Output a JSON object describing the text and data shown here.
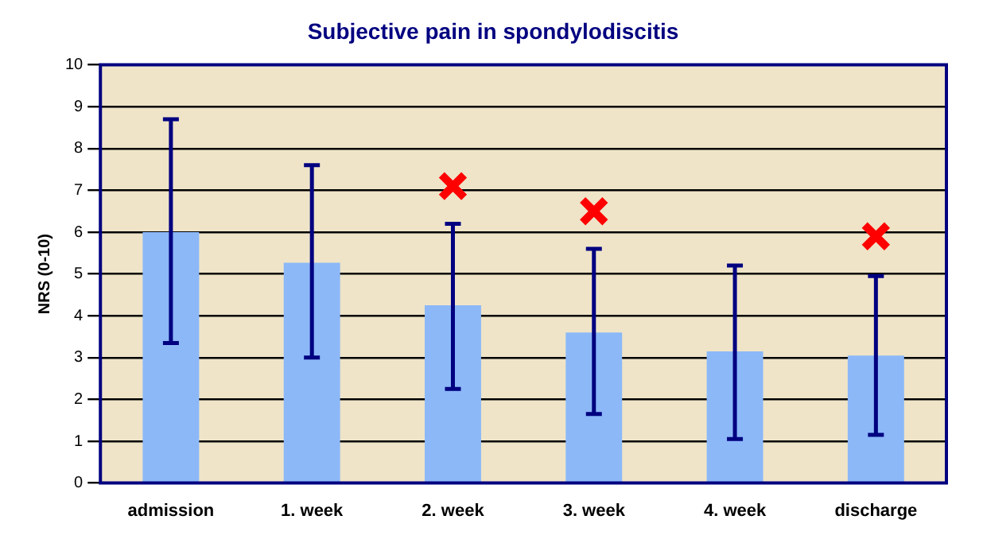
{
  "chart_data": {
    "type": "bar",
    "title": "Subjective pain in spondylodiscitis",
    "ylabel": "NRS (0-10)",
    "categories": [
      "admission",
      "1. week",
      "2. week",
      "3. week",
      "4. week",
      "discharge"
    ],
    "series": [
      {
        "color": "#8cb8f8",
        "values": [
          6.0,
          5.27,
          4.25,
          3.6,
          3.15,
          3.05
        ],
        "errors": [
          [
            3.35,
            8.7
          ],
          [
            3.0,
            7.6
          ],
          [
            2.25,
            6.2
          ],
          [
            1.65,
            5.6
          ],
          [
            1.05,
            5.2
          ],
          [
            1.15,
            4.95
          ]
        ]
      },
      {
        "type": "scatter",
        "color": "#ff0000",
        "marker": "cross",
        "x": [
          "2. week",
          "3. week",
          "discharge"
        ],
        "values": [
          7.1,
          6.5,
          5.9
        ]
      }
    ],
    "ylim": [
      0,
      10
    ],
    "yticks": [
      0,
      1,
      2,
      3,
      4,
      5,
      6,
      7,
      8,
      9,
      10
    ],
    "grid": "y",
    "legend": false
  }
}
